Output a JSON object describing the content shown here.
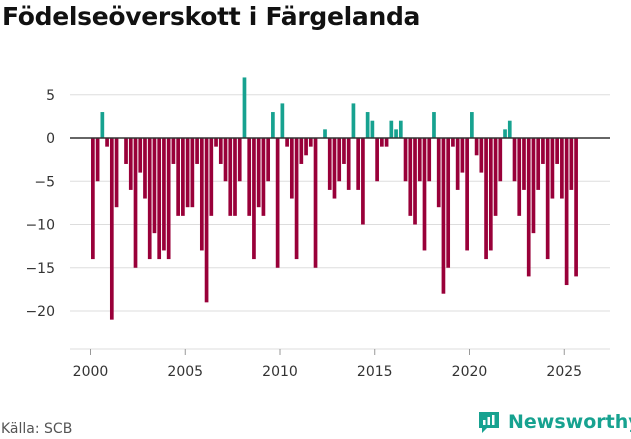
{
  "title": "Födelseöverskott i Färgelanda",
  "source": "Källa: SCB",
  "brand": "Newsworthy",
  "colors": {
    "positive": "#17a290",
    "negative": "#990039",
    "grid": "#dddddd",
    "zero": "#333333",
    "text": "#333333"
  },
  "chart_data": {
    "type": "bar",
    "title": "Födelseöverskott i Färgelanda",
    "xlabel": "",
    "ylabel": "",
    "ylim": [
      -25,
      8
    ],
    "xlim": [
      1998.5,
      2027
    ],
    "x_ticks": [
      2000,
      2005,
      2010,
      2015,
      2020,
      2025
    ],
    "x_tick_labels": [
      "2000",
      "2005",
      "2010",
      "2015",
      "2020",
      "2025"
    ],
    "y_ticks": [
      5,
      0,
      -5,
      -10,
      -15,
      -20
    ],
    "y_tick_labels": [
      "5",
      "0",
      "−5",
      "−10",
      "−15",
      "−20"
    ],
    "grid": true,
    "period": "quarterly",
    "start": 2000.0,
    "values": [
      -14,
      -5,
      3,
      -1,
      -21,
      -8,
      0,
      -3,
      -6,
      -15,
      -4,
      -7,
      -14,
      -11,
      -14,
      -13,
      -14,
      -3,
      -9,
      -9,
      -8,
      -8,
      -3,
      -13,
      -19,
      -9,
      -1,
      -3,
      -5,
      -9,
      -9,
      -5,
      7,
      -9,
      -14,
      -8,
      -9,
      -5,
      3,
      -15,
      4,
      -1,
      -7,
      -14,
      -3,
      -2,
      -1,
      -15,
      0,
      1,
      -6,
      -7,
      -5,
      -3,
      -6,
      4,
      -6,
      -10,
      3,
      2,
      -5,
      -1,
      -1,
      2,
      1,
      2,
      -5,
      -9,
      -10,
      -5,
      -13,
      -5,
      3,
      -8,
      -18,
      -15,
      -1,
      -6,
      -4,
      -13,
      3,
      -2,
      -4,
      -14,
      -13,
      -9,
      -5,
      1,
      2,
      -5,
      -9,
      -6,
      -16,
      -11,
      -6,
      -3,
      -14,
      -7,
      -3,
      -7,
      -17,
      -6,
      -16
    ]
  }
}
